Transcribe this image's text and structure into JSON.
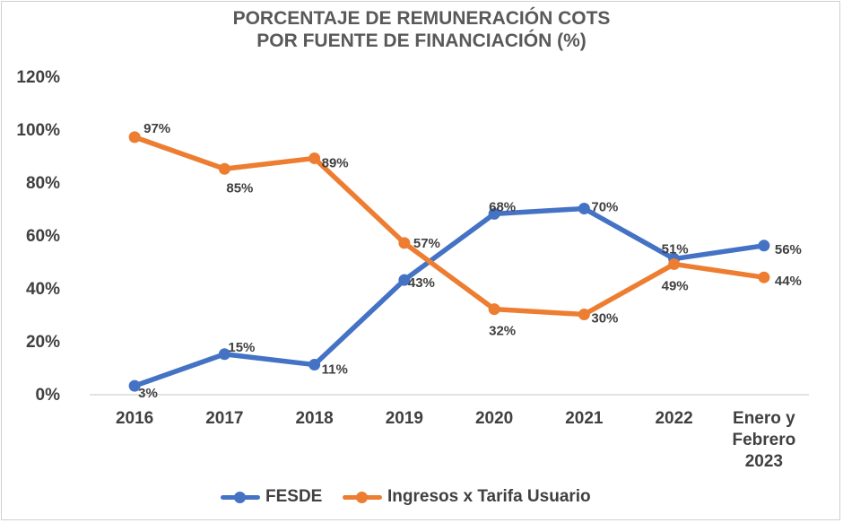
{
  "chart_data": {
    "type": "line",
    "title": [
      "PORCENTAJE DE REMUNERACIÓN COTS",
      "POR FUENTE DE FINANCIACIÓN (%)"
    ],
    "categories": [
      [
        "2016"
      ],
      [
        "2017"
      ],
      [
        "2018"
      ],
      [
        "2019"
      ],
      [
        "2020"
      ],
      [
        "2021"
      ],
      [
        "2022"
      ],
      [
        "Enero y",
        "Febrero",
        "2023"
      ]
    ],
    "series": [
      {
        "name": "FESDE",
        "color": "#4472C4",
        "values": [
          3,
          15,
          11,
          43,
          68,
          70,
          51,
          56
        ],
        "labels": [
          "3%",
          "15%",
          "11%",
          "43%",
          "68%",
          "70%",
          "51%",
          "56%"
        ]
      },
      {
        "name": "Ingresos x Tarifa Usuario",
        "color": "#ED7D31",
        "values": [
          97,
          85,
          89,
          57,
          32,
          30,
          49,
          44
        ],
        "labels": [
          "97%",
          "85%",
          "89%",
          "57%",
          "32%",
          "30%",
          "49%",
          "44%"
        ]
      }
    ],
    "yticks": [
      "0%",
      "20%",
      "40%",
      "60%",
      "80%",
      "100%",
      "120%"
    ],
    "ylim": [
      0,
      120
    ],
    "grid": false,
    "legend": "bottom"
  }
}
